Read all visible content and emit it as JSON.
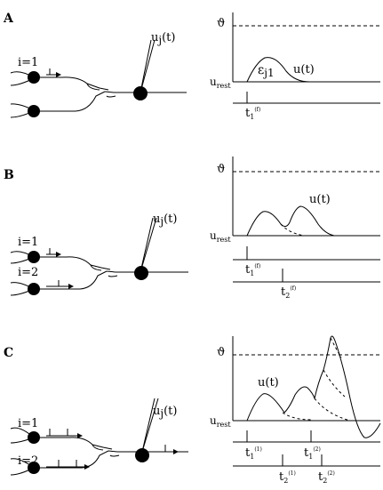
{
  "panels": [
    {
      "letter": "A",
      "neurons": [
        {
          "label": "i=1"
        }
      ],
      "post_label": "u",
      "post_sub": "j",
      "post_paren": "(t)",
      "threshold": "ϑ",
      "rest": "u",
      "rest_sub": "rest",
      "curve_label": "u(t)",
      "epsilon": "ε",
      "epsilon_sub": "j1",
      "spike_times": [
        {
          "t": "t",
          "sub": "1",
          "sup": "(f)"
        }
      ]
    },
    {
      "letter": "B",
      "neurons": [
        {
          "label": "i=1"
        },
        {
          "label": "i=2"
        }
      ],
      "post_label": "u",
      "post_sub": "j",
      "post_paren": "(t)",
      "threshold": "ϑ",
      "rest": "u",
      "rest_sub": "rest",
      "curve_label": "u(t)",
      "spike_times": [
        {
          "t": "t",
          "sub": "1",
          "sup": "(f)"
        },
        {
          "t": "t",
          "sub": "2",
          "sup": "(f)"
        }
      ]
    },
    {
      "letter": "C",
      "neurons": [
        {
          "label": "i=1"
        },
        {
          "label": "i=2"
        }
      ],
      "post_label": "u",
      "post_sub": "j",
      "post_paren": "(t)",
      "threshold": "ϑ",
      "rest": "u",
      "rest_sub": "rest",
      "curve_label": "u(t)",
      "spike_times": [
        {
          "t": "t",
          "sub": "1",
          "sup": "(1)"
        },
        {
          "t": "t",
          "sub": "1",
          "sup": "(2)"
        },
        {
          "t": "t",
          "sub": "2",
          "sup": "(1)"
        },
        {
          "t": "t",
          "sub": "2",
          "sup": "(2)"
        }
      ]
    }
  ]
}
